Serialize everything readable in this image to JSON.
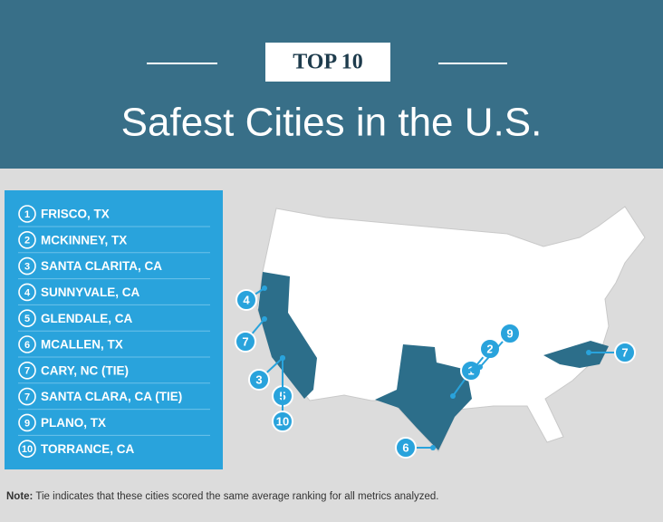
{
  "header": {
    "badge": "TOP 10",
    "title": "Safest Cities in the U.S."
  },
  "list": {
    "items": [
      {
        "rank": 1,
        "city": "FRISCO, TX"
      },
      {
        "rank": 2,
        "city": "MCKINNEY, TX"
      },
      {
        "rank": 3,
        "city": "SANTA CLARITA, CA"
      },
      {
        "rank": 4,
        "city": "SUNNYVALE, CA"
      },
      {
        "rank": 5,
        "city": "GLENDALE, CA"
      },
      {
        "rank": 6,
        "city": "MCALLEN, TX"
      },
      {
        "rank": 7,
        "city": "CARY, NC (TIE)"
      },
      {
        "rank": 7,
        "city": "SANTA CLARA, CA (TIE)"
      },
      {
        "rank": 9,
        "city": "PLANO, TX"
      },
      {
        "rank": 10,
        "city": "TORRANCE, CA"
      }
    ]
  },
  "map": {
    "markers": [
      4,
      7,
      3,
      5,
      10,
      1,
      2,
      9,
      6,
      7
    ]
  },
  "note": {
    "label": "Note:",
    "text": "Tie indicates that these cities scored the same average ranking for all metrics analyzed."
  }
}
